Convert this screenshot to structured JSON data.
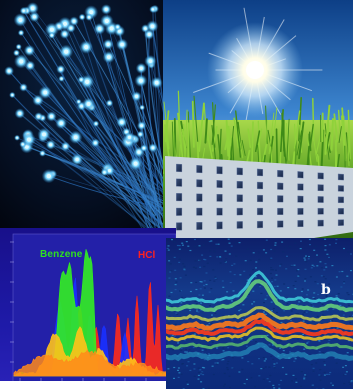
{
  "panels": {
    "fiber_optics": {
      "icon": "fiber-optic-cables-icon"
    },
    "solar": {
      "icon": "solar-panel-sun-icon"
    },
    "spectrum": {
      "benzene_label": "Benzene",
      "hcl_label": "HCl",
      "colors": {
        "benzene": "#2fe11f",
        "hcl": "#ff2020"
      }
    },
    "oct": {
      "panel_letter": "b"
    }
  }
}
